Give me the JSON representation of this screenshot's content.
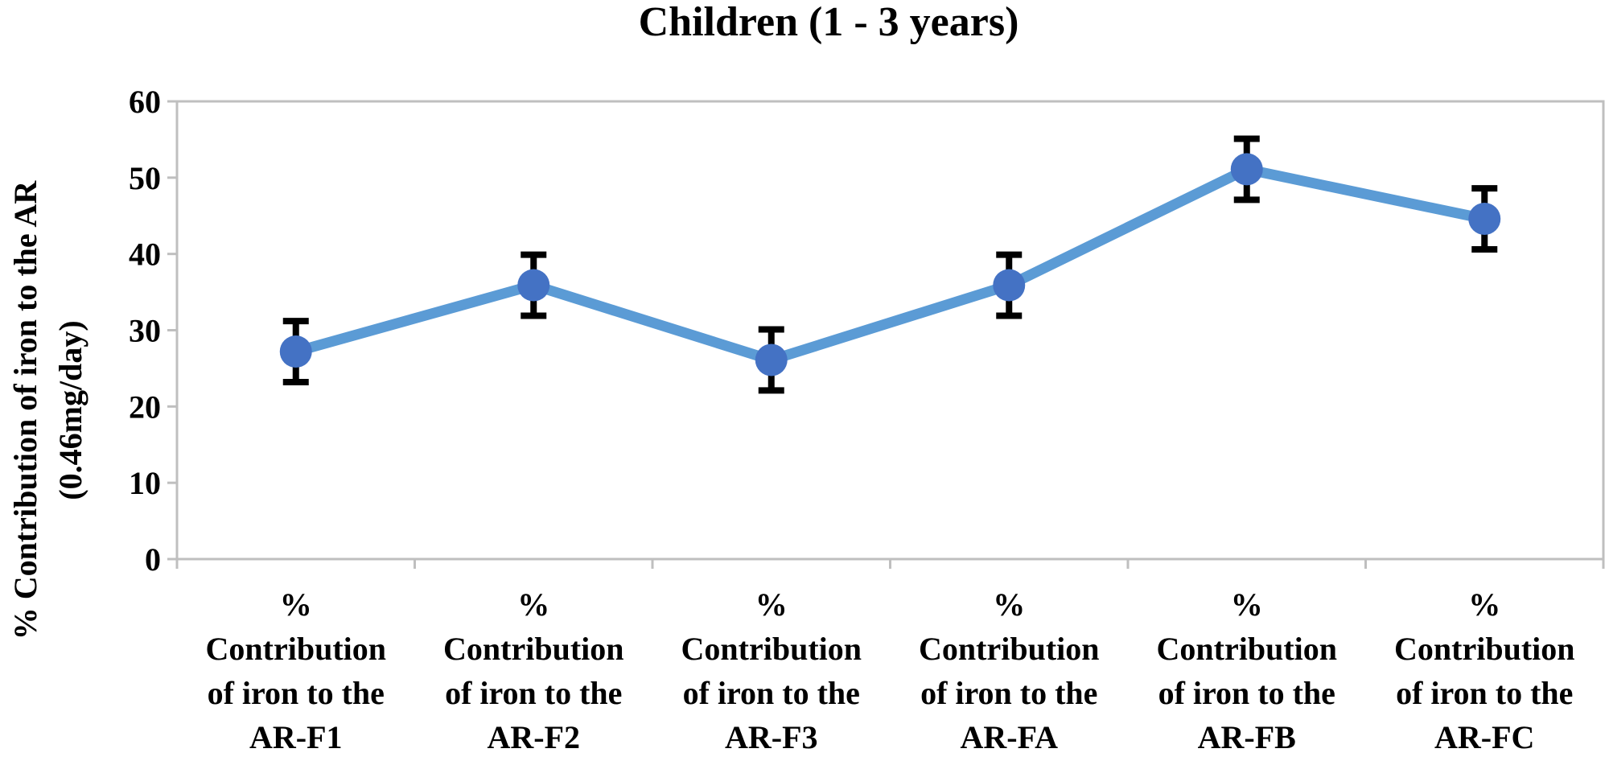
{
  "chart_data": {
    "type": "line",
    "title": "Children (1 - 3 years)",
    "ylabel_lines": [
      "% Contribution of iron to the AR",
      "(0.46mg/day)"
    ],
    "xlabel": "",
    "categories": [
      [
        "%",
        "Contribution",
        "of iron to the",
        "AR-F1"
      ],
      [
        "%",
        "Contribution",
        "of iron to the",
        "AR-F2"
      ],
      [
        "%",
        "Contribution",
        "of iron to the",
        "AR-F3"
      ],
      [
        "%",
        "Contribution",
        "of iron to the",
        "AR-FA"
      ],
      [
        "%",
        "Contribution",
        "of iron to the",
        "AR-FB"
      ],
      [
        "%",
        "Contribution",
        "of iron to the",
        "AR-FC"
      ]
    ],
    "series": [
      {
        "name": "% Contribution of iron to the AR",
        "values": [
          27.2,
          35.9,
          26.1,
          35.9,
          51.1,
          44.6
        ],
        "error": [
          4,
          4,
          4,
          4,
          4,
          4
        ]
      }
    ],
    "ylim": [
      0,
      60
    ],
    "yticks": [
      0,
      10,
      20,
      30,
      40,
      50,
      60
    ],
    "grid": false,
    "legend": "none",
    "colors": {
      "line": "#5B9BD5",
      "marker": "#4472C4",
      "error_bar": "#000000",
      "axis": "#BFBFBF"
    }
  }
}
